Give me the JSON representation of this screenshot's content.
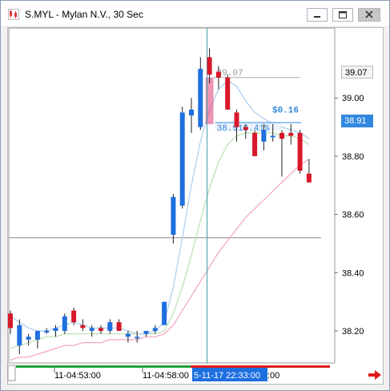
{
  "window": {
    "title": "S.MYL - Mylan N.V., 30 Sec"
  },
  "icons": {
    "app": "candlestick-app-icon",
    "minimize": "minimize-icon",
    "maximize": "maximize-icon",
    "close": "close-icon",
    "scroll_right": "red-right-arrow-icon"
  },
  "colors": {
    "bull": "#1e6fe0",
    "bear": "#d8182a",
    "ma_fast": "#a9ccef",
    "ma_mid": "#b9dfb2",
    "ma_slow": "#f3a3c0",
    "crosshair": "#3c9aa6",
    "highlight": "#e0407a",
    "tag_current": "#3288e0",
    "tag_prev": "#f3f3f3"
  },
  "price_tags": {
    "prev_close": "39.07",
    "current": "38.91"
  },
  "annotations": {
    "level_label": "39.07",
    "change": "$0.16",
    "measure": "38.910.41%"
  },
  "time_axis": {
    "labels": [
      "11-04:53:00",
      "11-04:58:00"
    ],
    "cursor_label": "5-11-17 22:33:00",
    "cursor_suffix": ":00"
  },
  "chart_data": {
    "type": "candlestick",
    "y_ticks": [
      "39.00",
      "38.80",
      "38.60",
      "38.40",
      "38.20"
    ],
    "ylim": [
      38.09,
      39.24
    ],
    "reference_line": 38.52,
    "candles": [
      {
        "o": 38.26,
        "h": 38.27,
        "l": 38.19,
        "c": 38.21
      },
      {
        "o": 38.15,
        "h": 38.24,
        "l": 38.12,
        "c": 38.22
      },
      {
        "o": 38.17,
        "h": 38.19,
        "l": 38.15,
        "c": 38.18
      },
      {
        "o": 38.17,
        "h": 38.2,
        "l": 38.14,
        "c": 38.2
      },
      {
        "o": 38.2,
        "h": 38.21,
        "l": 38.19,
        "c": 38.2
      },
      {
        "o": 38.2,
        "h": 38.22,
        "l": 38.18,
        "c": 38.21
      },
      {
        "o": 38.2,
        "h": 38.26,
        "l": 38.19,
        "c": 38.25
      },
      {
        "o": 38.27,
        "h": 38.28,
        "l": 38.22,
        "c": 38.23
      },
      {
        "o": 38.22,
        "h": 38.24,
        "l": 38.2,
        "c": 38.21
      },
      {
        "o": 38.2,
        "h": 38.22,
        "l": 38.18,
        "c": 38.21
      },
      {
        "o": 38.21,
        "h": 38.22,
        "l": 38.19,
        "c": 38.2
      },
      {
        "o": 38.2,
        "h": 38.24,
        "l": 38.19,
        "c": 38.23
      },
      {
        "o": 38.23,
        "h": 38.24,
        "l": 38.2,
        "c": 38.2
      },
      {
        "o": 38.18,
        "h": 38.2,
        "l": 38.16,
        "c": 38.19
      },
      {
        "o": 38.18,
        "h": 38.2,
        "l": 38.16,
        "c": 38.18
      },
      {
        "o": 38.19,
        "h": 38.2,
        "l": 38.18,
        "c": 38.2
      },
      {
        "o": 38.2,
        "h": 38.22,
        "l": 38.19,
        "c": 38.21
      },
      {
        "o": 38.22,
        "h": 38.3,
        "l": 38.22,
        "c": 38.3
      },
      {
        "o": 38.53,
        "h": 38.67,
        "l": 38.5,
        "c": 38.66
      },
      {
        "o": 38.63,
        "h": 38.97,
        "l": 38.62,
        "c": 38.95
      },
      {
        "o": 38.94,
        "h": 39.0,
        "l": 38.88,
        "c": 38.96
      },
      {
        "o": 38.9,
        "h": 39.14,
        "l": 38.89,
        "c": 39.1
      },
      {
        "o": 39.14,
        "h": 39.17,
        "l": 39.05,
        "c": 39.08
      },
      {
        "o": 39.09,
        "h": 39.11,
        "l": 39.03,
        "c": 39.07
      },
      {
        "o": 39.07,
        "h": 39.08,
        "l": 38.96,
        "c": 38.96
      },
      {
        "o": 38.95,
        "h": 38.96,
        "l": 38.85,
        "c": 38.9
      },
      {
        "o": 38.9,
        "h": 38.91,
        "l": 38.86,
        "c": 38.89
      },
      {
        "o": 38.88,
        "h": 38.89,
        "l": 38.8,
        "c": 38.8
      },
      {
        "o": 38.85,
        "h": 38.91,
        "l": 38.82,
        "c": 38.89
      },
      {
        "o": 38.87,
        "h": 38.91,
        "l": 38.85,
        "c": 38.87
      },
      {
        "o": 38.88,
        "h": 38.89,
        "l": 38.73,
        "c": 38.86
      },
      {
        "o": 38.88,
        "h": 38.91,
        "l": 38.84,
        "c": 38.87
      },
      {
        "o": 38.88,
        "h": 38.89,
        "l": 38.74,
        "c": 38.75
      },
      {
        "o": 38.74,
        "h": 38.79,
        "l": 38.71,
        "c": 38.71
      }
    ],
    "ma_fast": [
      38.25,
      38.23,
      38.21,
      38.2,
      38.2,
      38.21,
      38.22,
      38.23,
      38.22,
      38.21,
      38.21,
      38.21,
      38.21,
      38.2,
      38.19,
      38.19,
      38.2,
      38.23,
      38.35,
      38.52,
      38.7,
      38.85,
      38.96,
      39.03,
      39.06,
      39.04,
      38.99,
      38.95,
      38.93,
      38.91,
      38.9,
      38.89,
      38.88,
      38.86
    ],
    "ma_mid": [
      38.14,
      38.15,
      38.16,
      38.17,
      38.18,
      38.18,
      38.19,
      38.19,
      38.19,
      38.19,
      38.19,
      38.19,
      38.19,
      38.19,
      38.19,
      38.19,
      38.19,
      38.2,
      38.26,
      38.35,
      38.46,
      38.58,
      38.69,
      38.78,
      38.84,
      38.87,
      38.88,
      38.88,
      38.88,
      38.88,
      38.87,
      38.87,
      38.86,
      38.84
    ],
    "ma_slow": [
      38.1,
      38.11,
      38.11,
      38.12,
      38.13,
      38.14,
      38.15,
      38.15,
      38.16,
      38.16,
      38.16,
      38.17,
      38.17,
      38.17,
      38.17,
      38.18,
      38.18,
      38.19,
      38.22,
      38.27,
      38.32,
      38.37,
      38.42,
      38.47,
      38.51,
      38.55,
      38.59,
      38.62,
      38.65,
      38.68,
      38.71,
      38.74,
      38.77,
      38.79
    ],
    "crosshair_index": 22,
    "highlight_index": 22
  }
}
